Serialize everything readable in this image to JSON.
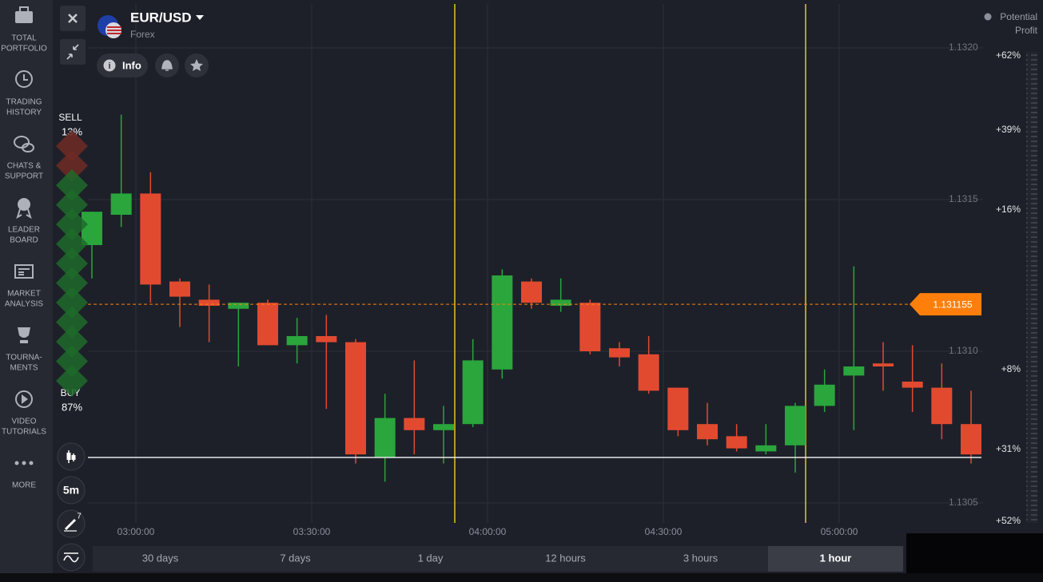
{
  "sidebar": [
    {
      "lines": [
        "TOTAL",
        "PORTFOLIO"
      ]
    },
    {
      "lines": [
        "TRADING",
        "HISTORY"
      ]
    },
    {
      "lines": [
        "CHATS &",
        "SUPPORT"
      ]
    },
    {
      "lines": [
        "LEADER",
        "BOARD"
      ]
    },
    {
      "lines": [
        "MARKET",
        "ANALYSIS"
      ]
    },
    {
      "lines": [
        "TOURNA-",
        "MENTS"
      ]
    },
    {
      "lines": [
        "VIDEO",
        "TUTORIALS"
      ]
    },
    {
      "lines": [
        "MORE"
      ]
    }
  ],
  "header": {
    "asset": "EUR/USD",
    "market": "Forex",
    "info": "Info"
  },
  "potential_profit": [
    "Potential",
    "Profit"
  ],
  "profit_scale": [
    "+62%",
    "+39%",
    "+16%",
    "+8%",
    "+31%",
    "+52%"
  ],
  "sentiment": {
    "sell": "SELL",
    "sell_pct": "13%",
    "buy": "BUY",
    "buy_pct": "87%"
  },
  "tools": {
    "timeframe": "5m",
    "drawings_badge": "7"
  },
  "periods": [
    "30 days",
    "7 days",
    "1 day",
    "12 hours",
    "3 hours",
    "1 hour"
  ],
  "active_period": "1 hour",
  "chart_data": {
    "type": "candlestick",
    "up_color": "#2aa63c",
    "down_color": "#e24a30",
    "ylim": [
      1.13045,
      1.13215
    ],
    "yticks": [
      {
        "value": 1.132,
        "label": "1.1320"
      },
      1.1315,
      {
        "value": 1.131,
        "label": "1.1310"
      },
      1.1305
    ],
    "grid": true,
    "xticks": [
      "03:00:00",
      "03:30:00",
      "04:00:00",
      "04:30:00",
      "05:00:00"
    ],
    "current_price": 1.131155,
    "candles": [
      {
        "open": 1.13135,
        "high": 1.13146,
        "low": 1.13124,
        "close": 1.13146
      },
      {
        "open": 1.13145,
        "high": 1.13178,
        "low": 1.13141,
        "close": 1.13152
      },
      {
        "open": 1.13152,
        "high": 1.13159,
        "low": 1.13116,
        "close": 1.13122
      },
      {
        "open": 1.13123,
        "high": 1.13124,
        "low": 1.13108,
        "close": 1.13118
      },
      {
        "open": 1.13117,
        "high": 1.13122,
        "low": 1.13103,
        "close": 1.13115
      },
      {
        "open": 1.13114,
        "high": 1.13116,
        "low": 1.13095,
        "close": 1.13116
      },
      {
        "open": 1.13116,
        "high": 1.13117,
        "low": 1.13102,
        "close": 1.13102
      },
      {
        "open": 1.13102,
        "high": 1.13111,
        "low": 1.13096,
        "close": 1.13105
      },
      {
        "open": 1.13105,
        "high": 1.13112,
        "low": 1.13081,
        "close": 1.13103
      },
      {
        "open": 1.13103,
        "high": 1.13104,
        "low": 1.13063,
        "close": 1.13066
      },
      {
        "open": 1.13065,
        "high": 1.13086,
        "low": 1.13057,
        "close": 1.13078
      },
      {
        "open": 1.13078,
        "high": 1.13097,
        "low": 1.13066,
        "close": 1.13074
      },
      {
        "open": 1.13074,
        "high": 1.13082,
        "low": 1.13063,
        "close": 1.13076
      },
      {
        "open": 1.13076,
        "high": 1.13104,
        "low": 1.13075,
        "close": 1.13097
      },
      {
        "open": 1.13094,
        "high": 1.13127,
        "low": 1.13091,
        "close": 1.13125
      },
      {
        "open": 1.13123,
        "high": 1.13124,
        "low": 1.13114,
        "close": 1.13116
      },
      {
        "open": 1.13115,
        "high": 1.13124,
        "low": 1.13113,
        "close": 1.13117
      },
      {
        "open": 1.13116,
        "high": 1.13117,
        "low": 1.13099,
        "close": 1.131
      },
      {
        "open": 1.13101,
        "high": 1.13103,
        "low": 1.13095,
        "close": 1.13098
      },
      {
        "open": 1.13099,
        "high": 1.13105,
        "low": 1.13086,
        "close": 1.13087
      },
      {
        "open": 1.13088,
        "high": 1.13088,
        "low": 1.13072,
        "close": 1.13074
      },
      {
        "open": 1.13076,
        "high": 1.13083,
        "low": 1.13069,
        "close": 1.13071
      },
      {
        "open": 1.13072,
        "high": 1.13076,
        "low": 1.13067,
        "close": 1.13068
      },
      {
        "open": 1.13067,
        "high": 1.13076,
        "low": 1.13066,
        "close": 1.13069
      },
      {
        "open": 1.13069,
        "high": 1.13083,
        "low": 1.1306,
        "close": 1.13082
      },
      {
        "open": 1.13082,
        "high": 1.13094,
        "low": 1.1308,
        "close": 1.13089
      },
      {
        "open": 1.13092,
        "high": 1.13128,
        "low": 1.13074,
        "close": 1.13095
      },
      {
        "open": 1.13096,
        "high": 1.13103,
        "low": 1.13087,
        "close": 1.13095
      },
      {
        "open": 1.1309,
        "high": 1.13102,
        "low": 1.1308,
        "close": 1.13088
      },
      {
        "open": 1.13088,
        "high": 1.13096,
        "low": 1.13071,
        "close": 1.13076
      },
      {
        "open": 1.13076,
        "high": 1.13087,
        "low": 1.13063,
        "close": 1.13066
      }
    ]
  }
}
